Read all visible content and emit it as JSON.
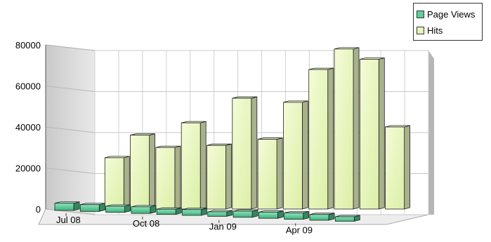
{
  "chart_data": {
    "type": "bar",
    "categories": [
      "Jul 08",
      "Aug 08",
      "Sep 08",
      "Oct 08",
      "Nov 08",
      "Dec 08",
      "Jan 09",
      "Feb 09",
      "Mar 09",
      "Apr 09",
      "May 09",
      "Jun 09",
      "Jul 09"
    ],
    "x_tick_labels": [
      "Jul 08",
      "Oct 08",
      "Jan 09",
      "Apr 09"
    ],
    "series": [
      {
        "name": "Page Views",
        "color": "#5fcf9a",
        "values": [
          3500,
          3300,
          3000,
          3200,
          2500,
          2800,
          2200,
          3000,
          3000,
          3100,
          2800,
          2200,
          0
        ]
      },
      {
        "name": "Hits",
        "color": "#e6f5b8",
        "values": [
          0,
          25000,
          36000,
          30000,
          42000,
          31000,
          54000,
          34000,
          52000,
          68000,
          78000,
          73000,
          40000
        ]
      }
    ],
    "yticks": [
      0,
      20000,
      40000,
      60000,
      80000
    ],
    "ylim": [
      0,
      80000
    ],
    "grid": true,
    "legend_position": "top-right",
    "style": "3d-bar"
  }
}
